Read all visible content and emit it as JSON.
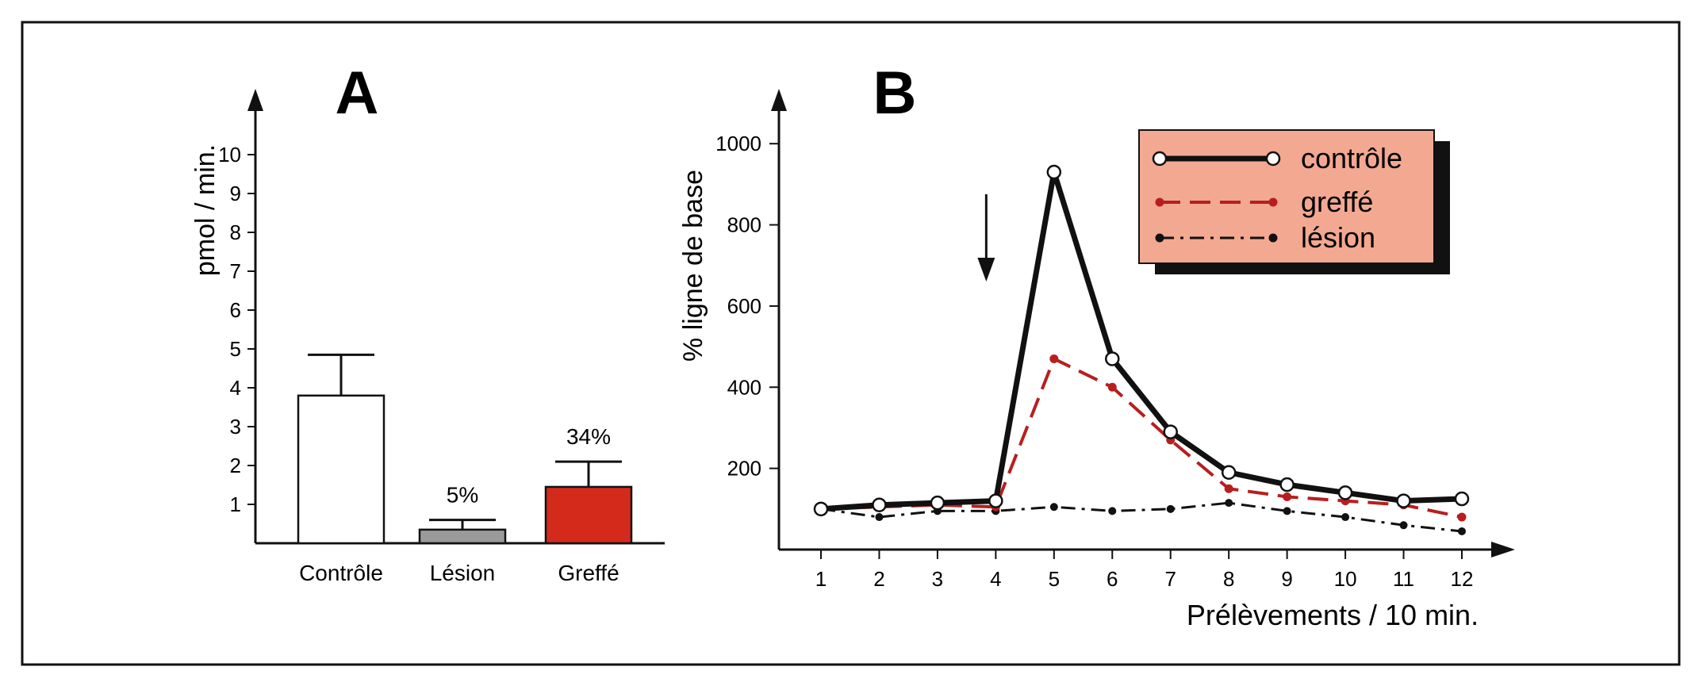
{
  "colors": {
    "frame": "#111111",
    "axis": "#111111",
    "control_bar": "#ffffff",
    "lesion_bar": "#9a9a9a",
    "graft_bar": "#d42a1c",
    "legend_bg": "#f3a891",
    "legend_shadow": "#111111",
    "control_line": "#111111",
    "graft_line": "#b81e1e",
    "lesion_line": "#111111"
  },
  "chart_data": [
    {
      "type": "bar",
      "panel_label": "A",
      "ylabel": "pmol / min.",
      "ylim": [
        0,
        10
      ],
      "yticks": [
        1,
        2,
        3,
        4,
        5,
        6,
        7,
        8,
        9,
        10
      ],
      "categories": [
        "Contrôle",
        "Lésion",
        "Greffé"
      ],
      "values": [
        3.8,
        0.35,
        1.45
      ],
      "errors": [
        1.05,
        0.25,
        0.65
      ],
      "bar_labels": [
        "",
        "5%",
        "34%"
      ],
      "bar_colors": [
        "#ffffff",
        "#9a9a9a",
        "#d42a1c"
      ]
    },
    {
      "type": "line",
      "panel_label": "B",
      "ylabel": "% ligne de base",
      "xlabel": "Prélèvements / 10 min.",
      "ylim": [
        0,
        1100
      ],
      "yticks": [
        200,
        400,
        600,
        800,
        1000
      ],
      "x": [
        1,
        2,
        3,
        4,
        5,
        6,
        7,
        8,
        9,
        10,
        11,
        12
      ],
      "stimulus_at": 4,
      "legend_position": "top-right",
      "series": [
        {
          "name": "contrôle",
          "values": [
            100,
            110,
            115,
            120,
            930,
            470,
            290,
            190,
            160,
            140,
            120,
            125
          ]
        },
        {
          "name": "greffé",
          "values": [
            100,
            105,
            110,
            105,
            470,
            400,
            270,
            150,
            130,
            120,
            110,
            80
          ]
        },
        {
          "name": "lésion",
          "values": [
            100,
            80,
            95,
            95,
            105,
            95,
            100,
            115,
            95,
            80,
            60,
            45
          ]
        }
      ]
    }
  ]
}
